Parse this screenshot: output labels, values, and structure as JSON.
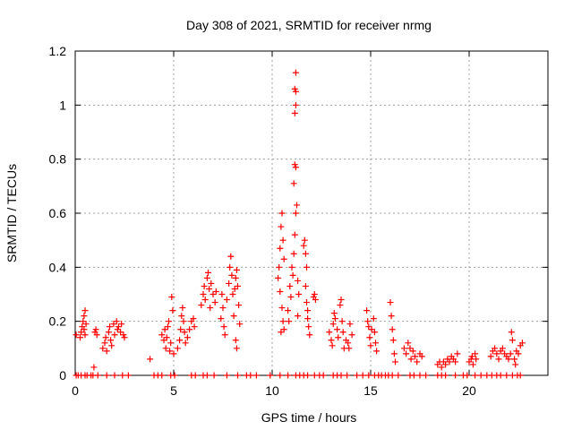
{
  "chart_data": {
    "type": "scatter",
    "title": "Day 308 of 2021, SRMTID for receiver nrmg",
    "xlabel": "GPS time / hours",
    "ylabel": "SRMTID / TECUs",
    "xlim": [
      0,
      24
    ],
    "ylim": [
      0,
      1.2
    ],
    "xticks": [
      0,
      5,
      10,
      15,
      20
    ],
    "xtick_labels": [
      "0",
      "5",
      "10",
      "15",
      "20"
    ],
    "yticks": [
      0,
      0.2,
      0.4,
      0.6,
      0.8,
      1.0,
      1.2
    ],
    "ytick_labels": [
      "0",
      "0.2",
      "0.4",
      "0.6",
      "0.8",
      "1",
      "1.2"
    ],
    "grid": true,
    "marker": "+",
    "series": [
      {
        "name": "SRMTID",
        "color": "#ff0000",
        "points": [
          [
            0.05,
            0.15
          ],
          [
            0.25,
            0.14
          ],
          [
            0.3,
            0.16
          ],
          [
            0.35,
            0.18
          ],
          [
            0.4,
            0.2
          ],
          [
            0.45,
            0.22
          ],
          [
            0.5,
            0.24
          ],
          [
            0.45,
            0.17
          ],
          [
            0.55,
            0.19
          ],
          [
            0.5,
            0.15
          ],
          [
            0.95,
            0.03
          ],
          [
            1.0,
            0.16
          ],
          [
            1.05,
            0.17
          ],
          [
            1.1,
            0.15
          ],
          [
            1.4,
            0.1
          ],
          [
            1.5,
            0.12
          ],
          [
            1.55,
            0.14
          ],
          [
            1.6,
            0.09
          ],
          [
            1.7,
            0.16
          ],
          [
            1.75,
            0.18
          ],
          [
            1.8,
            0.13
          ],
          [
            1.85,
            0.11
          ],
          [
            1.95,
            0.19
          ],
          [
            2.0,
            0.15
          ],
          [
            2.1,
            0.2
          ],
          [
            2.15,
            0.17
          ],
          [
            2.2,
            0.18
          ],
          [
            2.3,
            0.16
          ],
          [
            2.35,
            0.19
          ],
          [
            2.45,
            0.15
          ],
          [
            2.5,
            0.14
          ],
          [
            3.8,
            0.06
          ],
          [
            4.4,
            0.15
          ],
          [
            4.5,
            0.13
          ],
          [
            4.55,
            0.17
          ],
          [
            4.6,
            0.1
          ],
          [
            4.65,
            0.14
          ],
          [
            4.7,
            0.18
          ],
          [
            4.75,
            0.2
          ],
          [
            4.8,
            0.09
          ],
          [
            4.85,
            0.12
          ],
          [
            4.9,
            0.29
          ],
          [
            4.95,
            0.24
          ],
          [
            5.0,
            0.08
          ],
          [
            5.2,
            0.1
          ],
          [
            5.3,
            0.13
          ],
          [
            5.35,
            0.17
          ],
          [
            5.4,
            0.22
          ],
          [
            5.45,
            0.25
          ],
          [
            5.5,
            0.2
          ],
          [
            5.55,
            0.16
          ],
          [
            5.6,
            0.12
          ],
          [
            5.7,
            0.14
          ],
          [
            5.8,
            0.17
          ],
          [
            5.9,
            0.2
          ],
          [
            6.0,
            0.21
          ],
          [
            6.05,
            0.18
          ],
          [
            6.4,
            0.26
          ],
          [
            6.5,
            0.3
          ],
          [
            6.55,
            0.33
          ],
          [
            6.6,
            0.28
          ],
          [
            6.7,
            0.36
          ],
          [
            6.75,
            0.38
          ],
          [
            6.8,
            0.32
          ],
          [
            6.85,
            0.25
          ],
          [
            6.9,
            0.34
          ],
          [
            7.0,
            0.3
          ],
          [
            7.1,
            0.27
          ],
          [
            7.15,
            0.31
          ],
          [
            7.4,
            0.21
          ],
          [
            7.45,
            0.3
          ],
          [
            7.5,
            0.25
          ],
          [
            7.55,
            0.18
          ],
          [
            7.6,
            0.15
          ],
          [
            7.7,
            0.28
          ],
          [
            7.8,
            0.34
          ],
          [
            7.85,
            0.4
          ],
          [
            7.9,
            0.44
          ],
          [
            7.95,
            0.37
          ],
          [
            8.0,
            0.3
          ],
          [
            8.05,
            0.22
          ],
          [
            8.1,
            0.32
          ],
          [
            8.15,
            0.36
          ],
          [
            8.2,
            0.39
          ],
          [
            8.25,
            0.33
          ],
          [
            8.3,
            0.26
          ],
          [
            8.35,
            0.19
          ],
          [
            8.15,
            0.13
          ],
          [
            8.2,
            0.1
          ],
          [
            10.3,
            0.36
          ],
          [
            10.35,
            0.4
          ],
          [
            10.4,
            0.47
          ],
          [
            10.45,
            0.55
          ],
          [
            10.5,
            0.6
          ],
          [
            10.55,
            0.5
          ],
          [
            10.6,
            0.43
          ],
          [
            10.4,
            0.31
          ],
          [
            10.5,
            0.25
          ],
          [
            10.55,
            0.2
          ],
          [
            10.6,
            0.17
          ],
          [
            10.45,
            0.16
          ],
          [
            10.8,
            0.24
          ],
          [
            10.85,
            0.2
          ],
          [
            10.9,
            0.33
          ],
          [
            10.95,
            0.29
          ],
          [
            11.0,
            0.4
          ],
          [
            11.05,
            0.37
          ],
          [
            11.1,
            0.45
          ],
          [
            11.15,
            0.52
          ],
          [
            11.2,
            0.6
          ],
          [
            11.25,
            0.63
          ],
          [
            11.1,
            0.71
          ],
          [
            11.15,
            0.78
          ],
          [
            11.2,
            0.77
          ],
          [
            11.15,
            0.97
          ],
          [
            11.2,
            1.0
          ],
          [
            11.15,
            1.06
          ],
          [
            11.2,
            1.05
          ],
          [
            11.2,
            1.12
          ],
          [
            11.3,
            0.35
          ],
          [
            11.35,
            0.3
          ],
          [
            11.3,
            0.22
          ],
          [
            11.6,
            0.48
          ],
          [
            11.65,
            0.5
          ],
          [
            11.7,
            0.45
          ],
          [
            11.75,
            0.4
          ],
          [
            11.7,
            0.33
          ],
          [
            11.75,
            0.27
          ],
          [
            11.8,
            0.21
          ],
          [
            11.85,
            0.18
          ],
          [
            11.9,
            0.15
          ],
          [
            11.8,
            0.24
          ],
          [
            12.1,
            0.29
          ],
          [
            12.15,
            0.3
          ],
          [
            12.2,
            0.28
          ],
          [
            12.9,
            0.16
          ],
          [
            13.0,
            0.13
          ],
          [
            13.05,
            0.11
          ],
          [
            13.1,
            0.19
          ],
          [
            13.15,
            0.23
          ],
          [
            13.2,
            0.21
          ],
          [
            13.3,
            0.17
          ],
          [
            13.35,
            0.14
          ],
          [
            13.45,
            0.26
          ],
          [
            13.5,
            0.28
          ],
          [
            13.55,
            0.2
          ],
          [
            13.6,
            0.16
          ],
          [
            13.65,
            0.1
          ],
          [
            13.75,
            0.13
          ],
          [
            13.85,
            0.12
          ],
          [
            13.9,
            0.1
          ],
          [
            13.95,
            0.19
          ],
          [
            14.05,
            0.15
          ],
          [
            14.8,
            0.24
          ],
          [
            14.85,
            0.2
          ],
          [
            14.9,
            0.18
          ],
          [
            14.95,
            0.14
          ],
          [
            15.0,
            0.11
          ],
          [
            15.05,
            0.17
          ],
          [
            15.15,
            0.21
          ],
          [
            15.2,
            0.16
          ],
          [
            15.25,
            0.12
          ],
          [
            15.3,
            0.09
          ],
          [
            16.0,
            0.27
          ],
          [
            16.05,
            0.22
          ],
          [
            16.1,
            0.17
          ],
          [
            16.15,
            0.13
          ],
          [
            16.2,
            0.08
          ],
          [
            16.25,
            0.05
          ],
          [
            16.7,
            0.1
          ],
          [
            16.8,
            0.08
          ],
          [
            16.9,
            0.12
          ],
          [
            17.0,
            0.1
          ],
          [
            17.05,
            0.06
          ],
          [
            17.15,
            0.09
          ],
          [
            17.25,
            0.07
          ],
          [
            17.35,
            0.05
          ],
          [
            17.5,
            0.08
          ],
          [
            17.6,
            0.07
          ],
          [
            18.4,
            0.04
          ],
          [
            18.5,
            0.05
          ],
          [
            18.6,
            0.03
          ],
          [
            18.7,
            0.05
          ],
          [
            18.8,
            0.04
          ],
          [
            18.9,
            0.06
          ],
          [
            19.0,
            0.05
          ],
          [
            19.1,
            0.07
          ],
          [
            19.2,
            0.06
          ],
          [
            19.3,
            0.05
          ],
          [
            19.4,
            0.08
          ],
          [
            20.0,
            0.05
          ],
          [
            20.1,
            0.06
          ],
          [
            20.15,
            0.07
          ],
          [
            20.2,
            0.04
          ],
          [
            20.3,
            0.08
          ],
          [
            20.35,
            0.06
          ],
          [
            21.1,
            0.07
          ],
          [
            21.2,
            0.09
          ],
          [
            21.3,
            0.1
          ],
          [
            21.4,
            0.08
          ],
          [
            21.5,
            0.06
          ],
          [
            21.6,
            0.09
          ],
          [
            21.7,
            0.1
          ],
          [
            21.8,
            0.08
          ],
          [
            21.9,
            0.07
          ],
          [
            22.0,
            0.06
          ],
          [
            22.1,
            0.08
          ],
          [
            22.15,
            0.16
          ],
          [
            22.2,
            0.13
          ],
          [
            22.3,
            0.06
          ],
          [
            22.35,
            0.04
          ],
          [
            22.4,
            0.09
          ],
          [
            22.5,
            0.08
          ],
          [
            22.6,
            0.11
          ],
          [
            22.7,
            0.12
          ],
          [
            0.05,
            0
          ],
          [
            0.15,
            0
          ],
          [
            0.3,
            0
          ],
          [
            0.5,
            0
          ],
          [
            0.6,
            0
          ],
          [
            0.8,
            0
          ],
          [
            0.9,
            0
          ],
          [
            1.15,
            0
          ],
          [
            1.6,
            0
          ],
          [
            2.0,
            0
          ],
          [
            2.4,
            0
          ],
          [
            2.7,
            0
          ],
          [
            4.0,
            0
          ],
          [
            4.2,
            0
          ],
          [
            4.4,
            0
          ],
          [
            4.85,
            0
          ],
          [
            5.05,
            0
          ],
          [
            5.9,
            0
          ],
          [
            6.1,
            0
          ],
          [
            6.5,
            0
          ],
          [
            6.7,
            0
          ],
          [
            7.05,
            0
          ],
          [
            7.7,
            0
          ],
          [
            8.25,
            0
          ],
          [
            8.7,
            0
          ],
          [
            8.9,
            0
          ],
          [
            9.2,
            0
          ],
          [
            9.9,
            0
          ],
          [
            10.4,
            0
          ],
          [
            10.8,
            0
          ],
          [
            11.2,
            0
          ],
          [
            11.4,
            0
          ],
          [
            11.6,
            0
          ],
          [
            11.8,
            0
          ],
          [
            12.15,
            0
          ],
          [
            12.4,
            0
          ],
          [
            12.6,
            0
          ],
          [
            13.1,
            0
          ],
          [
            13.3,
            0
          ],
          [
            13.5,
            0
          ],
          [
            13.8,
            0
          ],
          [
            14.3,
            0
          ],
          [
            14.6,
            0
          ],
          [
            14.9,
            0
          ],
          [
            15.2,
            0
          ],
          [
            15.4,
            0
          ],
          [
            15.55,
            0
          ],
          [
            15.75,
            0
          ],
          [
            15.9,
            0
          ],
          [
            16.1,
            0
          ],
          [
            16.4,
            0
          ],
          [
            17.0,
            0
          ],
          [
            17.2,
            0
          ],
          [
            17.5,
            0
          ],
          [
            17.8,
            0
          ],
          [
            18.4,
            0
          ],
          [
            18.6,
            0
          ],
          [
            18.8,
            0
          ],
          [
            19.3,
            0
          ],
          [
            19.7,
            0
          ],
          [
            19.9,
            0
          ],
          [
            20.3,
            0
          ],
          [
            20.6,
            0
          ],
          [
            20.9,
            0
          ],
          [
            21.15,
            0
          ],
          [
            21.4,
            0
          ],
          [
            21.6,
            0
          ],
          [
            21.9,
            0
          ],
          [
            22.2,
            0
          ],
          [
            22.45,
            0
          ],
          [
            22.6,
            0
          ]
        ]
      }
    ]
  }
}
